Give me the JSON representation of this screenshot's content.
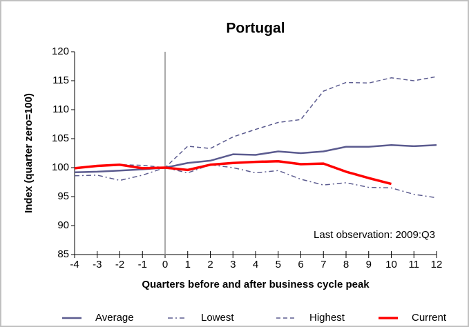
{
  "chart_data": {
    "type": "line",
    "title": "Portugal",
    "y_label": "Index (quarter zero=100)",
    "x_label": "Quarters before and after business cycle peak",
    "annotation": "Last observation: 2009:Q3",
    "x": [
      -4,
      -3,
      -2,
      -1,
      0,
      1,
      2,
      3,
      4,
      5,
      6,
      7,
      8,
      9,
      10,
      11,
      12
    ],
    "xlim": [
      -4,
      12
    ],
    "xticks": [
      -4,
      -3,
      -2,
      -1,
      0,
      1,
      2,
      3,
      4,
      5,
      6,
      7,
      8,
      9,
      10,
      11,
      12
    ],
    "ylim": [
      85,
      120
    ],
    "yticks": [
      85,
      90,
      95,
      100,
      105,
      110,
      115,
      120
    ],
    "vline": 0,
    "grid": false,
    "legend": "bottom",
    "series": [
      {
        "name": "Average",
        "color": "#5b5b8f",
        "dash": "none",
        "values": [
          99.2,
          99.3,
          99.5,
          99.7,
          100,
          100.8,
          101.2,
          102.3,
          102.2,
          102.8,
          102.5,
          102.8,
          103.6,
          103.6,
          103.9,
          103.7,
          103.9
        ]
      },
      {
        "name": "Lowest",
        "color": "#5b5b8f",
        "dash": "7,4,2,4",
        "values": [
          98.6,
          98.7,
          97.8,
          98.7,
          100,
          99.1,
          100.5,
          100.0,
          99.1,
          99.5,
          98.0,
          97.0,
          97.4,
          96.6,
          96.5,
          95.4,
          94.8
        ]
      },
      {
        "name": "Highest",
        "color": "#5b5b8f",
        "dash": "6,4",
        "values": [
          99.8,
          100.3,
          100.5,
          100.4,
          100,
          103.7,
          103.3,
          105.3,
          106.6,
          107.8,
          108.3,
          113.2,
          114.7,
          114.6,
          115.5,
          115.0,
          115.7
        ]
      },
      {
        "name": "Current",
        "color": "#ff0000",
        "dash": "none",
        "values": [
          99.9,
          100.3,
          100.5,
          99.9,
          100,
          99.6,
          100.5,
          100.8,
          101.0,
          101.1,
          100.6,
          100.7,
          99.3,
          98.2,
          97.2,
          null,
          null
        ]
      }
    ]
  }
}
